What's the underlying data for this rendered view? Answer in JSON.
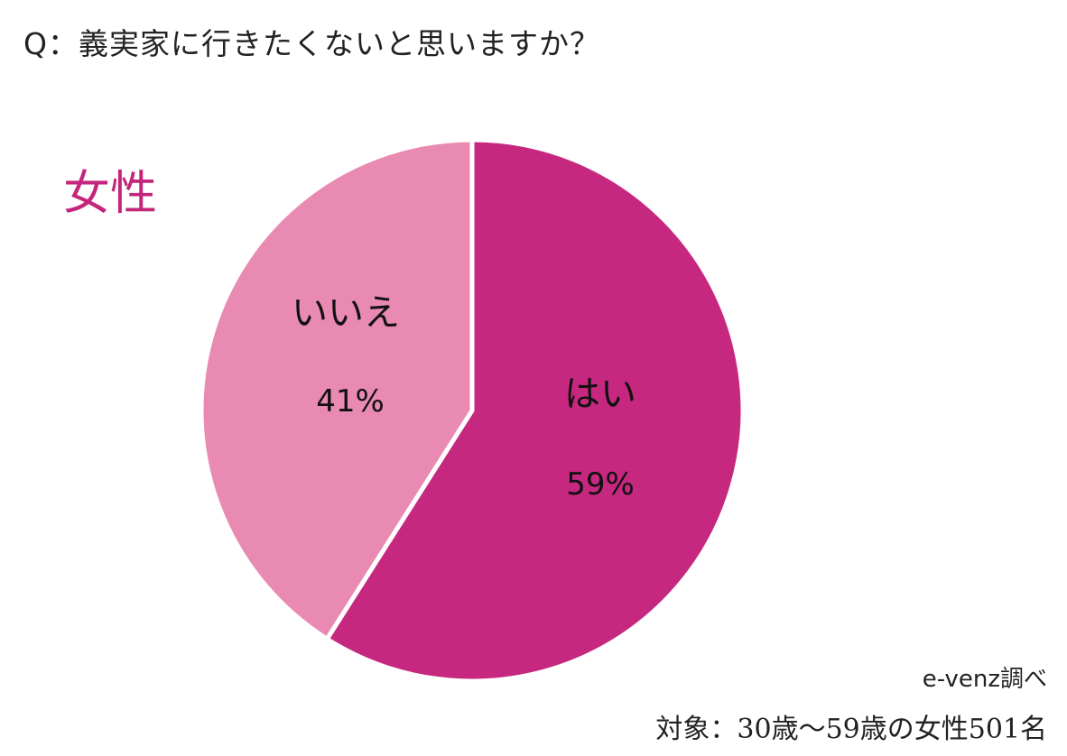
{
  "question": "Q：義実家に行きたくないと思いますか？",
  "group_label": "女性",
  "footer": {
    "source": "e-venz調べ",
    "sample": "対象：30歳〜59歳の女性501名"
  },
  "colors": {
    "group_label": "#c4267c",
    "yes": "#c62880",
    "no": "#e98ab3",
    "separator": "#ffffff"
  },
  "chart_data": {
    "type": "pie",
    "title": "Q：義実家に行きたくないと思いますか？",
    "slices": [
      {
        "label": "はい",
        "value": 59,
        "display": "59%",
        "color": "#c62880"
      },
      {
        "label": "いいえ",
        "value": 41,
        "display": "41%",
        "color": "#e98ab3"
      }
    ],
    "start": "12 o'clock",
    "direction": "clockwise"
  }
}
